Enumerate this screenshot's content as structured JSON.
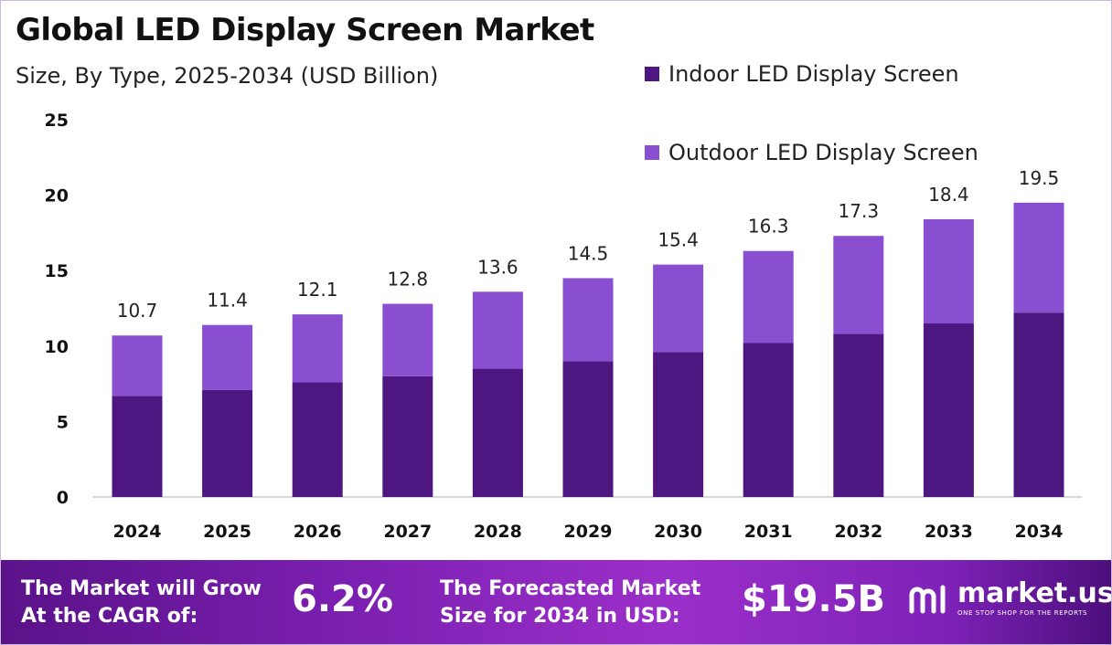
{
  "chart_data": {
    "type": "bar",
    "stacked": true,
    "title": "Global LED Display Screen Market",
    "subtitle": "Size, By Type, 2025-2034 (USD Billion)",
    "categories": [
      "2024",
      "2025",
      "2026",
      "2027",
      "2028",
      "2029",
      "2030",
      "2031",
      "2032",
      "2033",
      "2034"
    ],
    "series": [
      {
        "name": "Indoor LED Display Screen",
        "color": "#4e1681",
        "values": [
          6.7,
          7.1,
          7.6,
          8.0,
          8.5,
          9.0,
          9.6,
          10.2,
          10.8,
          11.5,
          12.2
        ]
      },
      {
        "name": "Outdoor LED Display Screen",
        "color": "#8a4fd1",
        "values": [
          4.0,
          4.3,
          4.5,
          4.8,
          5.1,
          5.5,
          5.8,
          6.1,
          6.5,
          6.9,
          7.3
        ]
      }
    ],
    "totals": [
      "10.7",
      "11.4",
      "12.1",
      "12.8",
      "13.6",
      "14.5",
      "15.4",
      "16.3",
      "17.3",
      "18.4",
      "19.5"
    ],
    "yticks": [
      "0",
      "5",
      "10",
      "15",
      "20",
      "25"
    ],
    "ylim": [
      0,
      25
    ],
    "grid": false,
    "legend_position": "top-right"
  },
  "footer": {
    "cagr_label": "The Market will Grow\nAt the CAGR of:",
    "cagr_value": "6.2%",
    "forecast_label": "The Forecasted Market\nSize for 2034 in USD:",
    "forecast_value": "$19.5B",
    "brand_name": "market.us",
    "brand_tagline": "ONE STOP SHOP FOR THE REPORTS",
    "brand_icon": "market-us-logo-icon"
  }
}
